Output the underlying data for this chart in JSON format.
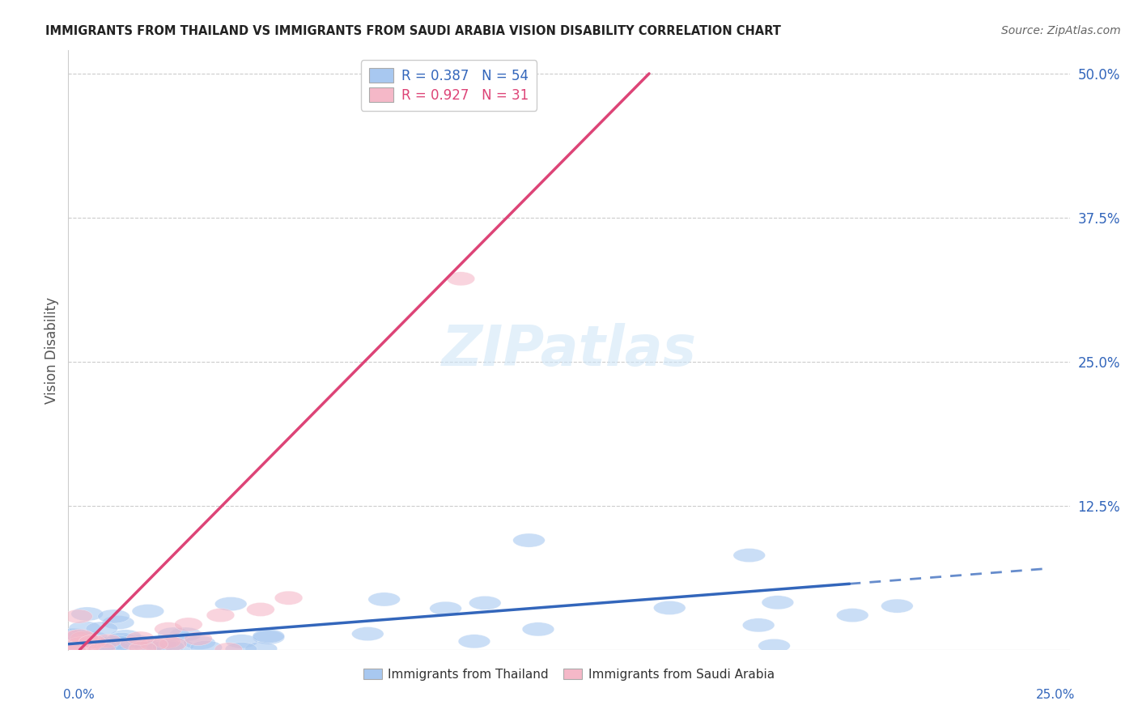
{
  "title": "IMMIGRANTS FROM THAILAND VS IMMIGRANTS FROM SAUDI ARABIA VISION DISABILITY CORRELATION CHART",
  "source": "Source: ZipAtlas.com",
  "ylabel": "Vision Disability",
  "yticks": [
    0.0,
    0.125,
    0.25,
    0.375,
    0.5
  ],
  "ytick_labels": [
    "",
    "12.5%",
    "25.0%",
    "37.5%",
    "50.0%"
  ],
  "xlim": [
    0.0,
    0.25
  ],
  "ylim": [
    0.0,
    0.52
  ],
  "thailand_R": 0.387,
  "thailand_N": 54,
  "saudi_R": 0.927,
  "saudi_N": 31,
  "thailand_color": "#a8c8f0",
  "saudi_color": "#f5b8c8",
  "thailand_line_color": "#3366bb",
  "saudi_line_color": "#dd4477",
  "watermark": "ZIPatlas",
  "th_line_x0": 0.0,
  "th_line_y0": 0.005,
  "th_line_x1": 0.25,
  "th_line_y1": 0.072,
  "sa_line_x0": 0.0,
  "sa_line_y0": -0.01,
  "sa_line_x1": 0.145,
  "sa_line_y1": 0.5
}
